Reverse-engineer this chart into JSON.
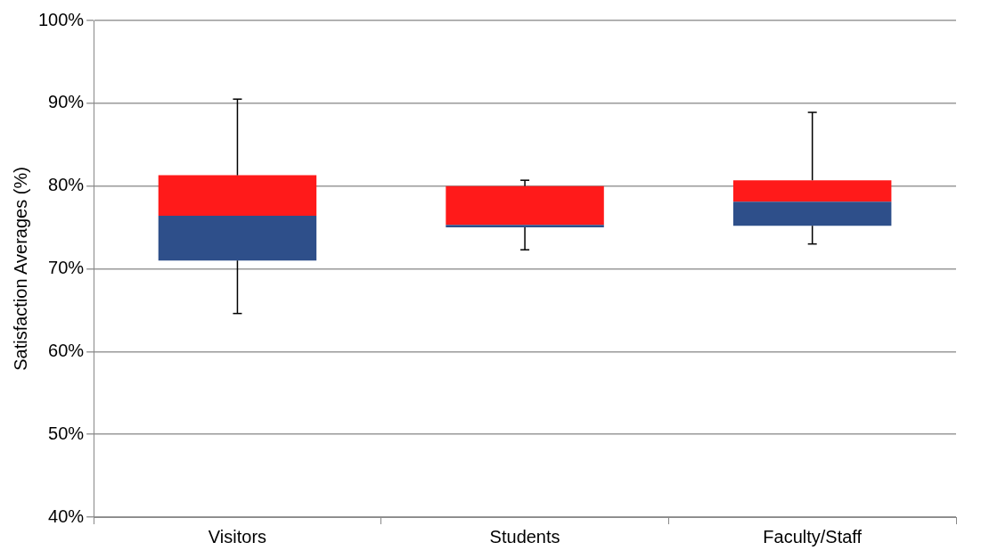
{
  "chart_data": {
    "type": "box",
    "ylabel": "Satisfaction Averages (%)",
    "categories": [
      "Visitors",
      "Students",
      "Faculty/Staff"
    ],
    "series": [
      {
        "color": "#ff1a1a",
        "colors": [
          "#2e4f8a",
          "#2e4f8a",
          "#2e4f8a"
        ],
        "boxes": [
          {
            "low": 64.6,
            "q1": 71.0,
            "median": 76.4,
            "q3": 81.3,
            "high": 90.5
          },
          {
            "low": 72.3,
            "q1": 75.0,
            "median": 75.3,
            "q3": 80.0,
            "high": 80.7
          },
          {
            "low": 73.0,
            "q1": 75.2,
            "median": 78.1,
            "q3": 80.7,
            "high": 88.9
          }
        ]
      }
    ],
    "ylim": [
      40,
      100
    ],
    "yticks": [
      {
        "value": 40,
        "label": "40%"
      },
      {
        "value": 50,
        "label": "50%"
      },
      {
        "value": 60,
        "label": "60%"
      },
      {
        "value": 70,
        "label": "70%"
      },
      {
        "value": 80,
        "label": "80%"
      },
      {
        "value": 90,
        "label": "90%"
      },
      {
        "value": 100,
        "label": "100%"
      }
    ],
    "grid": "y",
    "legend": false
  }
}
